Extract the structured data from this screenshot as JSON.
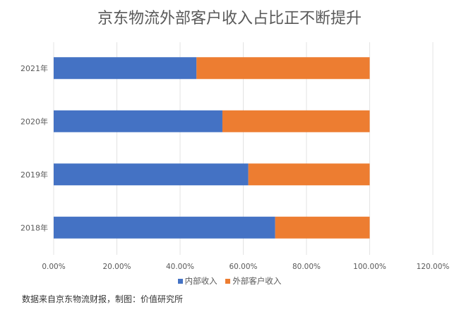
{
  "chart_data": {
    "type": "bar",
    "orientation": "horizontal",
    "stacked": true,
    "title": "京东物流外部客户收入占比正不断提升",
    "categories": [
      "2021年",
      "2020年",
      "2019年",
      "2018年"
    ],
    "series": [
      {
        "name": "内部收入",
        "color": "#4472C4",
        "values": [
          45.2,
          53.4,
          61.6,
          70.1
        ]
      },
      {
        "name": "外部客户收入",
        "color": "#ED7D31",
        "values": [
          54.8,
          46.6,
          38.4,
          29.9
        ]
      }
    ],
    "xlim": [
      0,
      120
    ],
    "xticks": [
      "0.00%",
      "20.00%",
      "40.00%",
      "60.00%",
      "80.00%",
      "100.00%",
      "120.00%"
    ],
    "grid": true,
    "legend": "bottom",
    "source": "数据来自京东物流财报，制图：价值研究所"
  }
}
